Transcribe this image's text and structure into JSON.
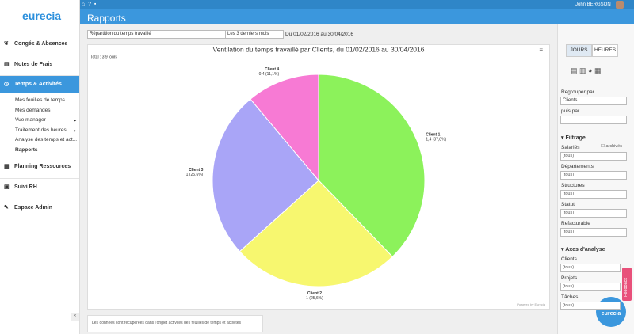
{
  "header": {
    "user": "John BERGSON",
    "title": "Rapports"
  },
  "sidebar": {
    "logo": "eurecia",
    "items": [
      "Congés & Absences",
      "Notes de Frais",
      "Temps & Activités"
    ],
    "submenu": [
      "Mes feuilles de temps",
      "Mes demandes",
      "Vue manager",
      "Traitement des heures",
      "Analyse des temps et act...",
      "Rapports"
    ],
    "items_after": [
      "Planning Ressources",
      "Suivi RH",
      "Espace Admin"
    ]
  },
  "toolbar": {
    "report": "Répartition du temps travaillé",
    "period": "Les 3 derniers mois",
    "range": "Du 01/02/2016 au 30/04/2016"
  },
  "chart_data": {
    "type": "pie",
    "title": "Ventilation du temps travaillé par Clients, du 01/02/2016 au 30/04/2016",
    "subtitle": "Total : 3,9 jours",
    "categories": [
      "Client 1",
      "Client 2",
      "Client 3",
      "Client 4"
    ],
    "values": [
      37.8,
      25.6,
      25.6,
      11.1
    ],
    "value_labels": [
      "1,4 (37,8%)",
      "1 (25,6%)",
      "1 (25,6%)",
      "0,4 (11,1%)"
    ],
    "colors": [
      "#8cf25b",
      "#f7f76f",
      "#a9a5f7",
      "#f77ad4"
    ],
    "credit": "Powered by Eurecia"
  },
  "panel": {
    "tabs": [
      "JOURS",
      "HEURES"
    ],
    "group_label": "Regrouper par",
    "group_value": "Clients",
    "then_label": "puis par",
    "filter_title": "Filtrage",
    "archived": "archivés",
    "filters": [
      [
        "Salariés",
        "(tous)"
      ],
      [
        "Départements",
        "(tous)"
      ],
      [
        "Structures",
        "(tous)"
      ],
      [
        "Statut",
        "(tous)"
      ],
      [
        "Refacturable",
        "(tous)"
      ]
    ],
    "axes_title": "Axes d'analyse",
    "axes": [
      [
        "Clients",
        "(tous)"
      ],
      [
        "Projets",
        "(tous)"
      ],
      [
        "Tâches",
        "(tous)"
      ]
    ],
    "feedback": "Feedback",
    "badge": "eurecia"
  },
  "footer": {
    "note": "Les données sont récupérées dans l'onglet activités des feuilles de temps et activités"
  }
}
